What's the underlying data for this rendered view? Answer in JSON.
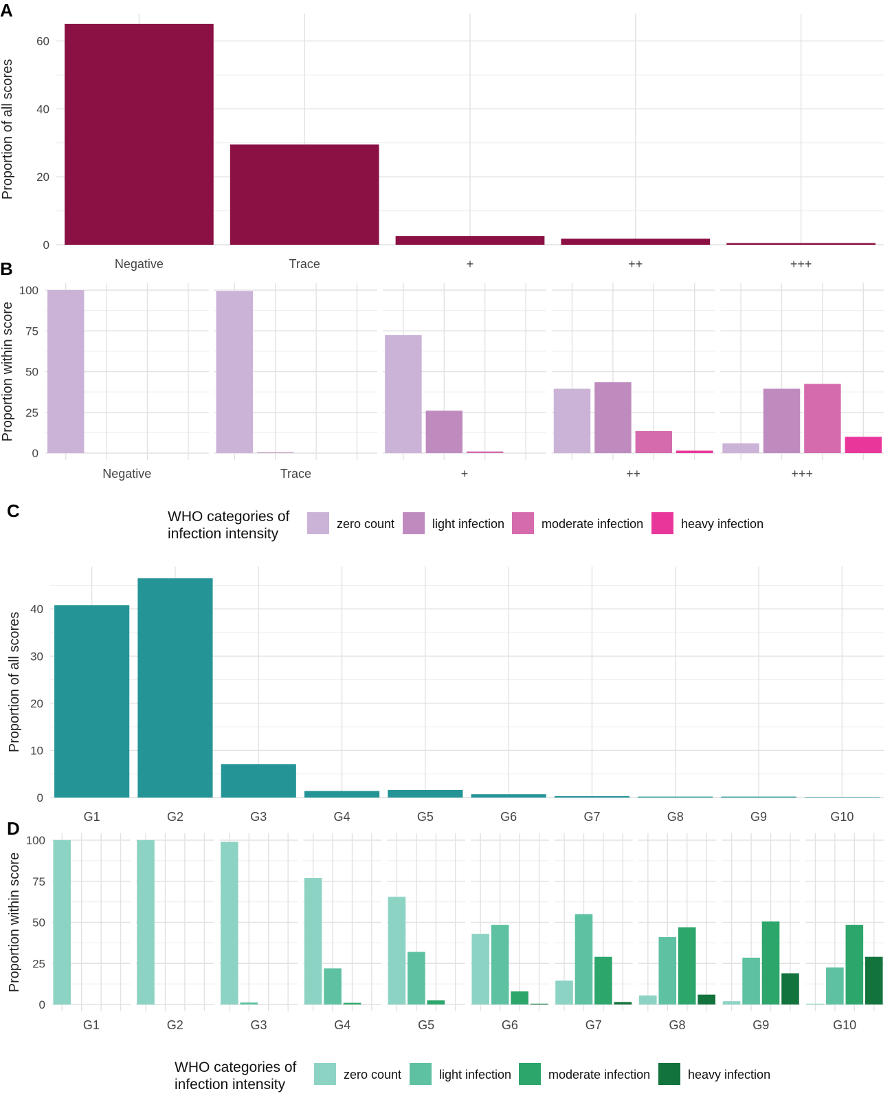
{
  "chart_data": [
    {
      "panel": "A",
      "type": "bar",
      "title": "",
      "xlabel": "",
      "ylabel": "Proportion of all scores",
      "ylim": [
        0,
        68
      ],
      "yticks": [
        0,
        20,
        40,
        60
      ],
      "categories": [
        "Negative",
        "Trace",
        "+",
        "++",
        "+++"
      ],
      "values": [
        65,
        29.5,
        2.6,
        1.8,
        0.5
      ],
      "color": "#8B1043"
    },
    {
      "panel": "B",
      "type": "bar",
      "facets": [
        "Negative",
        "Trace",
        "+",
        "++",
        "+++"
      ],
      "ylabel": "Proportion within score",
      "ylim": [
        0,
        100
      ],
      "yticks": [
        0,
        25,
        50,
        75,
        100
      ],
      "series": [
        {
          "name": "zero count",
          "values": [
            100,
            99.5,
            72.5,
            39.5,
            6
          ],
          "color": "#CBB2D7"
        },
        {
          "name": "light infection",
          "values": [
            0,
            0.4,
            26,
            43.5,
            39.5
          ],
          "color": "#BF8BBF"
        },
        {
          "name": "moderate infection",
          "values": [
            0,
            0,
            1,
            13.5,
            42.5
          ],
          "color": "#D56BAD"
        },
        {
          "name": "heavy infection",
          "values": [
            0,
            0,
            0,
            1.5,
            10
          ],
          "color": "#E9369A"
        }
      ],
      "legend": {
        "title": [
          "WHO categories of",
          "infection intensity"
        ],
        "placement": "bottom"
      }
    },
    {
      "panel": "C",
      "type": "bar",
      "xlabel": "",
      "ylabel": "Proportion of all scores",
      "ylim": [
        0,
        49
      ],
      "yticks": [
        0,
        10,
        20,
        30,
        40
      ],
      "categories": [
        "G1",
        "G2",
        "G3",
        "G4",
        "G5",
        "G6",
        "G7",
        "G8",
        "G9",
        "G10"
      ],
      "values": [
        40.8,
        46.5,
        7.1,
        1.4,
        1.6,
        0.7,
        0.3,
        0.2,
        0.2,
        0.1
      ],
      "color": "#259496"
    },
    {
      "panel": "D",
      "type": "bar",
      "facets": [
        "G1",
        "G2",
        "G3",
        "G4",
        "G5",
        "G6",
        "G7",
        "G8",
        "G9",
        "G10"
      ],
      "ylabel": "Proportion within score",
      "ylim": [
        0,
        100
      ],
      "yticks": [
        0,
        25,
        50,
        75,
        100
      ],
      "series": [
        {
          "name": "zero count",
          "values": [
            100,
            100,
            99,
            77,
            65.5,
            43,
            14.5,
            5.5,
            2,
            0.5
          ],
          "color": "#8DD3C4"
        },
        {
          "name": "light infection",
          "values": [
            0,
            0,
            1.2,
            22,
            32,
            48.5,
            55,
            41,
            28.5,
            22.5
          ],
          "color": "#5EC1A2"
        },
        {
          "name": "moderate infection",
          "values": [
            0,
            0,
            0,
            1,
            2.5,
            8,
            29,
            47,
            50.5,
            48.5
          ],
          "color": "#2DA66C"
        },
        {
          "name": "heavy infection",
          "values": [
            0,
            0,
            0,
            0,
            0,
            0.5,
            1.5,
            6,
            19,
            29
          ],
          "color": "#12733C"
        }
      ],
      "legend": {
        "title": [
          "WHO categories of",
          "infection intensity"
        ],
        "placement": "bottom"
      }
    }
  ],
  "panel_labels": [
    "A",
    "B",
    "C",
    "D"
  ]
}
